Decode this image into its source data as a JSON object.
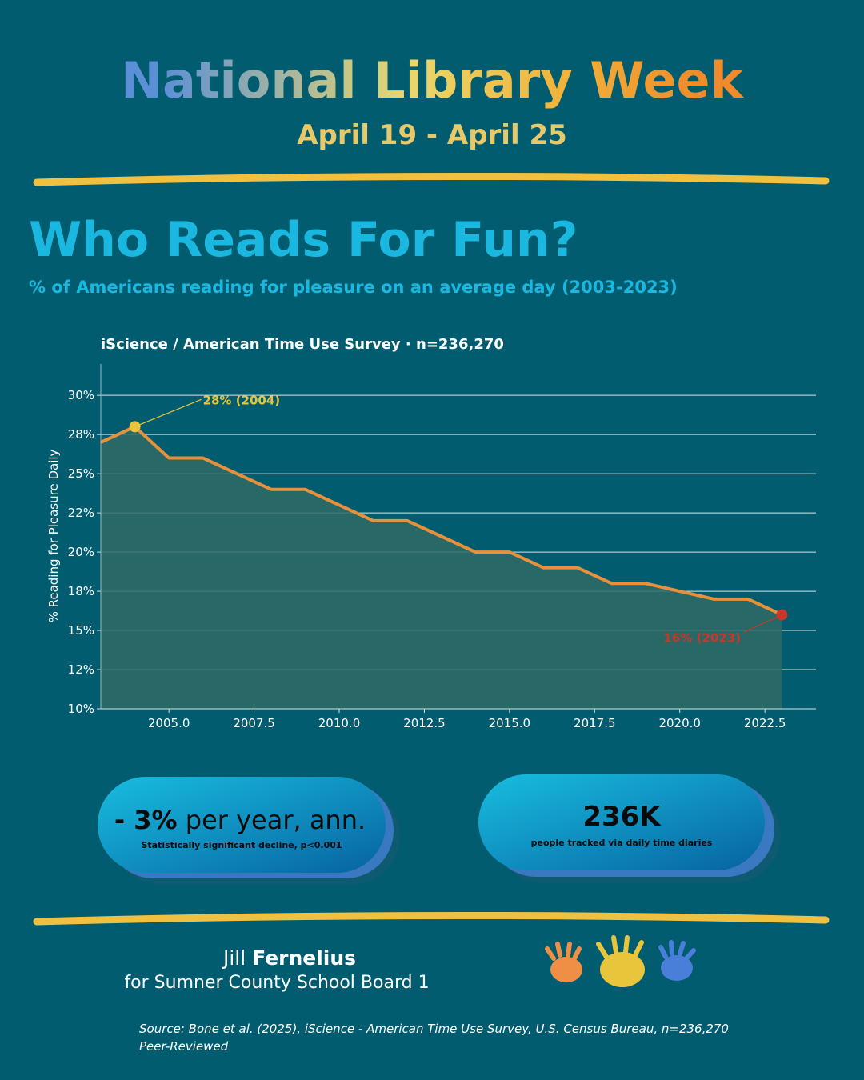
{
  "header": {
    "title": "National Library Week",
    "dates": "April 19 - April 25"
  },
  "section": {
    "title": "Who Reads For Fun?",
    "subtitle": "% of Americans reading for pleasure on an average day (2003-2023)"
  },
  "chart_data": {
    "type": "line",
    "title": "iScience / American Time Use Survey · n=236,270",
    "y_label": "% Reading for Pleasure Daily",
    "x": [
      2003,
      2004,
      2005,
      2006,
      2007,
      2008,
      2009,
      2010,
      2011,
      2012,
      2013,
      2014,
      2015,
      2016,
      2017,
      2018,
      2019,
      2020,
      2021,
      2022,
      2023
    ],
    "values": [
      27,
      28,
      26,
      26,
      25,
      24,
      24,
      23,
      22,
      22,
      21,
      20,
      20,
      19,
      19,
      18,
      18,
      17.5,
      17,
      17,
      16
    ],
    "color": "#e8903a",
    "area_color": "#2f6a66",
    "xlim": [
      2003,
      2024
    ],
    "ylim": [
      10,
      32
    ],
    "xticks": [
      {
        "value": 2005,
        "label": "2005.0"
      },
      {
        "value": 2007.5,
        "label": "2007.5"
      },
      {
        "value": 2010,
        "label": "2010.0"
      },
      {
        "value": 2012.5,
        "label": "2012.5"
      },
      {
        "value": 2015,
        "label": "2015.0"
      },
      {
        "value": 2017.5,
        "label": "2017.5"
      },
      {
        "value": 2020,
        "label": "2020.0"
      },
      {
        "value": 2022.5,
        "label": "2022.5"
      }
    ],
    "yticks": [
      {
        "value": 10,
        "label": "10%"
      },
      {
        "value": 12.5,
        "label": "12%"
      },
      {
        "value": 15,
        "label": "15%"
      },
      {
        "value": 17.5,
        "label": "18%"
      },
      {
        "value": 20,
        "label": "20%"
      },
      {
        "value": 22.5,
        "label": "22%"
      },
      {
        "value": 25,
        "label": "25%"
      },
      {
        "value": 27.5,
        "label": "28%"
      },
      {
        "value": 30,
        "label": "30%"
      }
    ],
    "grid": true,
    "highlights": [
      {
        "x": 2004,
        "y": 28,
        "label": "28% (2004)",
        "color": "#e8c53a"
      },
      {
        "x": 2023,
        "y": 16,
        "label": "16% (2023)",
        "color": "#c8372a"
      }
    ]
  },
  "stats": [
    {
      "value": "- 3%",
      "text": " per year, ann.",
      "note": "Statistically significant decline, p<0.001"
    },
    {
      "value": "236K",
      "note": "people tracked via daily time diaries"
    }
  ],
  "footer": {
    "name_first": "Jill",
    "name_last": "Fernelius",
    "role": "for Sumner County School Board 1",
    "source": "Source: Bone et al. (2025), iScience - American Time Use Survey, U.S. Census Bureau, n=236,270",
    "source_note": "Peer-Reviewed"
  }
}
